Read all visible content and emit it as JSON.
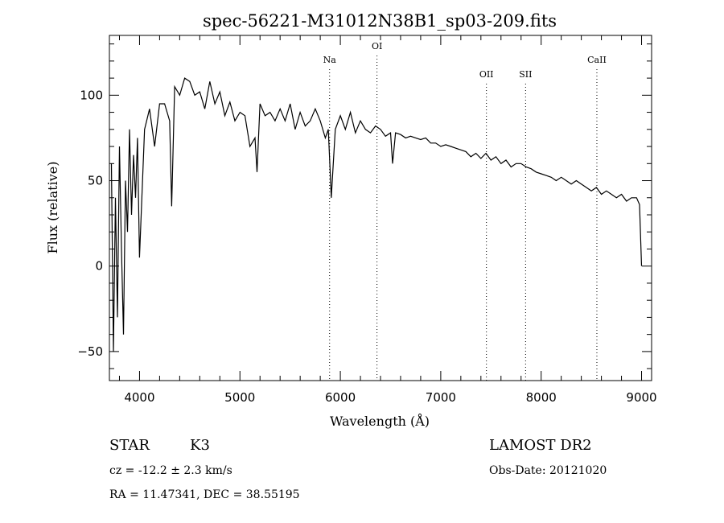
{
  "chart_data": {
    "type": "line",
    "title": "spec-56221-M31012N38B1_sp03-209.fits",
    "xlabel": "Wavelength (Å)",
    "ylabel": "Flux (relative)",
    "xlim": [
      3700,
      9100
    ],
    "ylim": [
      -67,
      135
    ],
    "x_ticks": [
      4000,
      5000,
      6000,
      7000,
      8000,
      9000
    ],
    "y_ticks": [
      -50,
      0,
      50,
      100
    ],
    "grid": false,
    "line_color": "#000000",
    "series": [
      {
        "x": [
          3720,
          3740,
          3760,
          3780,
          3800,
          3820,
          3840,
          3860,
          3880,
          3900,
          3920,
          3940,
          3960,
          3980,
          4000,
          4050,
          4100,
          4150,
          4200,
          4250,
          4300,
          4320,
          4350,
          4400,
          4450,
          4500,
          4550,
          4600,
          4650,
          4700,
          4750,
          4800,
          4850,
          4900,
          4950,
          5000,
          5050,
          5100,
          5150,
          5170,
          5200,
          5250,
          5300,
          5350,
          5400,
          5450,
          5500,
          5550,
          5600,
          5650,
          5700,
          5750,
          5800,
          5850,
          5880,
          5895,
          5910,
          5950,
          6000,
          6050,
          6100,
          6150,
          6200,
          6250,
          6300,
          6350,
          6400,
          6450,
          6500,
          6520,
          6550,
          6600,
          6650,
          6700,
          6750,
          6800,
          6850,
          6900,
          6950,
          7000,
          7050,
          7100,
          7150,
          7200,
          7250,
          7300,
          7350,
          7400,
          7450,
          7500,
          7550,
          7600,
          7650,
          7700,
          7750,
          7800,
          7850,
          7900,
          7950,
          8000,
          8050,
          8100,
          8150,
          8200,
          8250,
          8300,
          8350,
          8400,
          8450,
          8500,
          8550,
          8600,
          8650,
          8700,
          8750,
          8800,
          8850,
          8900,
          8950,
          8980,
          9000
        ],
        "y": [
          60,
          -50,
          40,
          -30,
          70,
          10,
          -40,
          50,
          20,
          80,
          30,
          65,
          40,
          75,
          5,
          80,
          92,
          70,
          95,
          95,
          85,
          35,
          105,
          100,
          110,
          108,
          100,
          102,
          92,
          108,
          95,
          102,
          88,
          96,
          85,
          90,
          88,
          70,
          75,
          55,
          95,
          88,
          90,
          85,
          92,
          85,
          95,
          80,
          90,
          82,
          85,
          92,
          85,
          75,
          80,
          60,
          40,
          80,
          88,
          80,
          90,
          78,
          85,
          80,
          78,
          82,
          80,
          76,
          78,
          60,
          78,
          77,
          75,
          76,
          75,
          74,
          75,
          72,
          72,
          70,
          71,
          70,
          69,
          68,
          67,
          64,
          66,
          63,
          66,
          62,
          64,
          60,
          62,
          58,
          60,
          60,
          58,
          57,
          55,
          54,
          53,
          52,
          50,
          52,
          50,
          48,
          50,
          48,
          46,
          44,
          46,
          42,
          44,
          42,
          40,
          42,
          38,
          40,
          40,
          36,
          0
        ]
      }
    ],
    "line_markers": [
      {
        "label": "Na",
        "x": 5893
      },
      {
        "label": "OI",
        "x": 6365
      },
      {
        "label": "OII",
        "x": 7455
      },
      {
        "label": "SII",
        "x": 7845
      },
      {
        "label": "CaII",
        "x": 8555
      }
    ]
  },
  "info": {
    "object_class": "STAR",
    "subclass": "K3",
    "survey": "LAMOST DR2",
    "cz": "cz = -12.2 ± 2.3 km/s",
    "obs_date": "Obs-Date: 20121020",
    "coords": "RA =  11.47341, DEC =  38.55195"
  }
}
